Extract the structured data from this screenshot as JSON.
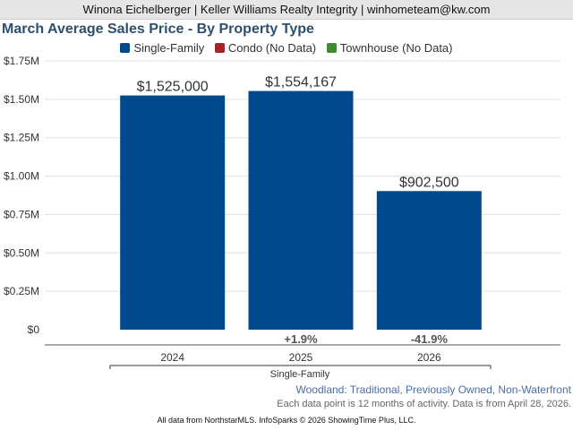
{
  "banner": {
    "text": "Winona Eichelberger | Keller Williams Realty Integrity | winhometeam@kw.com"
  },
  "legend": {
    "items": [
      {
        "label": "Single-Family",
        "color": "#004a8c"
      },
      {
        "label": "Condo (No Data)",
        "color": "#a4262c"
      },
      {
        "label": "Townhouse (No Data)",
        "color": "#3d8a2f"
      }
    ]
  },
  "captions": {
    "region": "Woodland: Traditional, Previously Owned, Non-Waterfront",
    "data_note": "Each data point is 12 months of activity. Data is from April 28, 2026.",
    "footer": "All data from NorthstarMLS. InfoSparks © 2026 ShowingTime Plus, LLC."
  },
  "chart_data": {
    "type": "bar",
    "title": "March Average Sales Price - By Property Type",
    "categories": [
      "2024",
      "2025",
      "2026"
    ],
    "series": [
      {
        "name": "Single-Family",
        "color": "#004a8c",
        "values": [
          1525000,
          1554167,
          902500
        ],
        "value_labels": [
          "$1,525,000",
          "$1,554,167",
          "$902,500"
        ]
      }
    ],
    "change_labels": [
      "",
      "+1.9%",
      "-41.9%"
    ],
    "group_label": "Single-Family",
    "ylim": [
      0,
      1750000
    ],
    "yticks": [
      0,
      250000,
      500000,
      750000,
      1000000,
      1250000,
      1500000,
      1750000
    ],
    "ytick_labels": [
      "$0",
      "$0.25M",
      "$0.50M",
      "$0.75M",
      "$1.00M",
      "$1.25M",
      "$1.50M",
      "$1.75M"
    ],
    "grid": true,
    "xlabel": "",
    "ylabel": ""
  }
}
